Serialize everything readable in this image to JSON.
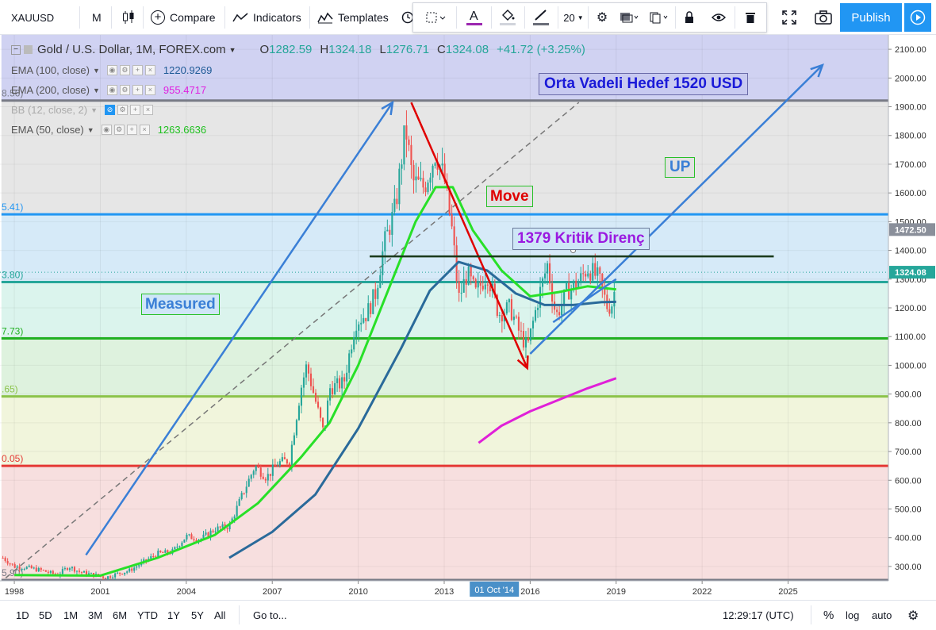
{
  "toolbar": {
    "symbol": "XAUUSD",
    "interval": "M",
    "compare_label": "Compare",
    "indicators_label": "Indicators",
    "templates_label": "Templates",
    "font_size": "20",
    "publish_label": "Publish"
  },
  "legend": {
    "title": "Gold / U.S. Dollar, 1M, FOREX.com",
    "o_label": "O",
    "o_value": "1282.59",
    "h_label": "H",
    "h_value": "1324.18",
    "l_label": "L",
    "l_value": "1276.71",
    "c_label": "C",
    "c_value": "1324.08",
    "change": "+41.72 (+3.25%)"
  },
  "indicators": [
    {
      "label": "EMA (100, close)",
      "value": "1220.9269",
      "color": "#1e5a96"
    },
    {
      "label": "EMA (200, close)",
      "value": "955.4717",
      "color": "#e020e0"
    },
    {
      "label": "BB (12, close, 2)",
      "value": "",
      "color": "#2196f3"
    },
    {
      "label": "EMA (50, close)",
      "value": "1263.6636",
      "color": "#20d020"
    }
  ],
  "annotations": {
    "target": "Orta Vadeli Hedef 1520 USD",
    "up": "UP",
    "move": "Move",
    "resistance": "1379 Kritik Direnç",
    "measured": "Measured"
  },
  "chart_data": {
    "type": "candlestick",
    "symbol": "XAUUSD",
    "timeframe": "1M",
    "ylim": [
      250,
      2150
    ],
    "y_ticks": [
      "300.00",
      "400.00",
      "500.00",
      "600.00",
      "700.00",
      "800.00",
      "900.00",
      "1000.00",
      "1100.00",
      "1200.00",
      "1300.00",
      "1400.00",
      "1500.00",
      "1600.00",
      "1700.00",
      "1800.00",
      "1900.00",
      "2000.00",
      "2100.00"
    ],
    "x_ticks": [
      "1998",
      "2001",
      "2004",
      "2007",
      "2010",
      "2013",
      "2016",
      "2019",
      "2022",
      "2025"
    ],
    "x_range": [
      1997.5,
      2028.5
    ],
    "price_label_last": "1324.08",
    "price_label_fib": "1472.50",
    "time_label": "01 Oct '14",
    "time_label_year": 2014.75,
    "fib_levels": [
      {
        "price": 1921.56,
        "label": "8.56)",
        "color": "#787b86"
      },
      {
        "price": 1525.41,
        "label": "5.41)",
        "color": "#2196f3"
      },
      {
        "price": 1289.8,
        "label": "3.80)",
        "color": "#26a69a"
      },
      {
        "price": 1093.73,
        "label": "7.73)",
        "color": "#22b022"
      },
      {
        "price": 891.65,
        "label": ".65)",
        "color": "#8bc34a"
      },
      {
        "price": 650.05,
        "label": "0.05)",
        "color": "#e53935"
      },
      {
        "price": 252.9,
        "label": "5.90)",
        "color": "#787b86"
      }
    ],
    "zones": [
      {
        "from": 1921.56,
        "to": 2150,
        "color": "#c8caf0"
      },
      {
        "from": 1525.41,
        "to": 1921.56,
        "color": "#e2e2e2"
      },
      {
        "from": 1289.8,
        "to": 1525.41,
        "color": "#cfe6f7"
      },
      {
        "from": 1093.73,
        "to": 1289.8,
        "color": "#d5f2ea"
      },
      {
        "from": 891.65,
        "to": 1093.73,
        "color": "#d8f0d8"
      },
      {
        "from": 650.05,
        "to": 891.65,
        "color": "#eef3d6"
      },
      {
        "from": 252.9,
        "to": 650.05,
        "color": "#f6d9d9"
      }
    ],
    "price_series": [
      [
        1997.6,
        330
      ],
      [
        1998.0,
        300
      ],
      [
        1998.5,
        295
      ],
      [
        1999.0,
        285
      ],
      [
        1999.5,
        270
      ],
      [
        1999.9,
        300
      ],
      [
        2000.3,
        280
      ],
      [
        2000.8,
        270
      ],
      [
        2001.2,
        262
      ],
      [
        2001.6,
        275
      ],
      [
        2002.0,
        285
      ],
      [
        2002.5,
        315
      ],
      [
        2003.0,
        345
      ],
      [
        2003.5,
        350
      ],
      [
        2004.0,
        405
      ],
      [
        2004.5,
        395
      ],
      [
        2005.0,
        430
      ],
      [
        2005.5,
        440
      ],
      [
        2006.0,
        560
      ],
      [
        2006.4,
        650
      ],
      [
        2006.8,
        610
      ],
      [
        2007.2,
        660
      ],
      [
        2007.6,
        670
      ],
      [
        2008.0,
        920
      ],
      [
        2008.2,
        1000
      ],
      [
        2008.5,
        880
      ],
      [
        2008.8,
        760
      ],
      [
        2009.0,
        920
      ],
      [
        2009.5,
        940
      ],
      [
        2009.9,
        1150
      ],
      [
        2010.3,
        1180
      ],
      [
        2010.6,
        1250
      ],
      [
        2010.9,
        1420
      ],
      [
        2011.3,
        1550
      ],
      [
        2011.65,
        1830
      ],
      [
        2011.9,
        1640
      ],
      [
        2012.3,
        1620
      ],
      [
        2012.7,
        1740
      ],
      [
        2013.0,
        1650
      ],
      [
        2013.3,
        1450
      ],
      [
        2013.5,
        1230
      ],
      [
        2013.8,
        1320
      ],
      [
        2014.1,
        1250
      ],
      [
        2014.5,
        1320
      ],
      [
        2014.9,
        1180
      ],
      [
        2015.3,
        1200
      ],
      [
        2015.6,
        1120
      ],
      [
        2015.9,
        1060
      ],
      [
        2016.3,
        1240
      ],
      [
        2016.6,
        1350
      ],
      [
        2016.9,
        1170
      ],
      [
        2017.3,
        1260
      ],
      [
        2017.7,
        1290
      ],
      [
        2018.0,
        1340
      ],
      [
        2018.4,
        1300
      ],
      [
        2018.7,
        1200
      ],
      [
        2018.9,
        1220
      ],
      [
        2019.0,
        1324
      ]
    ],
    "ema_50": [
      [
        1998,
        270
      ],
      [
        2001,
        268
      ],
      [
        2003,
        330
      ],
      [
        2005,
        410
      ],
      [
        2006.5,
        520
      ],
      [
        2008,
        680
      ],
      [
        2009,
        800
      ],
      [
        2010,
        1000
      ],
      [
        2011,
        1250
      ],
      [
        2012,
        1500
      ],
      [
        2012.7,
        1620
      ],
      [
        2013.3,
        1620
      ],
      [
        2014,
        1470
      ],
      [
        2015,
        1330
      ],
      [
        2016,
        1240
      ],
      [
        2017,
        1255
      ],
      [
        2018,
        1275
      ],
      [
        2019,
        1264
      ]
    ],
    "ema_100": [
      [
        2005.5,
        330
      ],
      [
        2007,
        420
      ],
      [
        2008.5,
        550
      ],
      [
        2010,
        780
      ],
      [
        2011.5,
        1060
      ],
      [
        2012.5,
        1260
      ],
      [
        2013.5,
        1360
      ],
      [
        2014.5,
        1330
      ],
      [
        2015.5,
        1250
      ],
      [
        2016.5,
        1210
      ],
      [
        2017.5,
        1210
      ],
      [
        2018.5,
        1220
      ],
      [
        2019,
        1221
      ]
    ],
    "ema_200": [
      [
        2014.2,
        730
      ],
      [
        2015,
        790
      ],
      [
        2016,
        840
      ],
      [
        2017,
        880
      ],
      [
        2018,
        920
      ],
      [
        2019,
        955
      ]
    ],
    "drawings": {
      "measured_arrow": [
        [
          2000.5,
          340
        ],
        [
          2011.2,
          1915
        ]
      ],
      "dashed_line": [
        [
          1997.7,
          260
        ],
        [
          2017.7,
          1915
        ]
      ],
      "move_arrow": [
        [
          2011.85,
          1915
        ],
        [
          2015.9,
          990
        ]
      ],
      "up_arrow": [
        [
          2016.0,
          1040
        ],
        [
          2026.2,
          2045
        ]
      ],
      "channel_line": [
        [
          2016.8,
          1150
        ],
        [
          2019.0,
          1300
        ]
      ],
      "resistance_line": {
        "from": 2010.4,
        "to": 2024.5,
        "price": 1379
      }
    }
  }
}
